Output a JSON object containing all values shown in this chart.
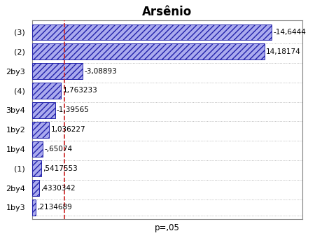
{
  "title": "Arsênio",
  "categories": [
    "(3)",
    "(2)",
    "2by3",
    "(4)",
    "3by4",
    "1by2",
    "1by4",
    "(1)",
    "2by4",
    "1by3"
  ],
  "values": [
    -14.6444,
    14.18174,
    -3.08893,
    1.763233,
    -1.39565,
    1.036227,
    -0.65074,
    0.5417553,
    0.4330342,
    0.2134689
  ],
  "abs_values": [
    14.6444,
    14.18174,
    3.08893,
    1.763233,
    1.39565,
    1.036227,
    0.65074,
    0.5417553,
    0.4330342,
    0.2134689
  ],
  "labels": [
    "-14,6444",
    "14,18174",
    "-3,08893",
    "1,763233",
    "-1,39565",
    "1,036227",
    "-,65074",
    ",5417553",
    ",4330342",
    ",2134689"
  ],
  "bar_facecolor": "#aaaaee",
  "hatch": "////",
  "bar_edge_color": "#2222aa",
  "bg_color": "#ffffff",
  "plot_bg_color": "#ffffff",
  "dashed_line_color": "#cc2222",
  "dashed_line_x": 1.96,
  "xlabel": "p=,05",
  "title_fontsize": 12,
  "label_fontsize": 7.5,
  "tick_fontsize": 8,
  "xlim": [
    0,
    16.5
  ],
  "grid_color": "#aaaaaa"
}
